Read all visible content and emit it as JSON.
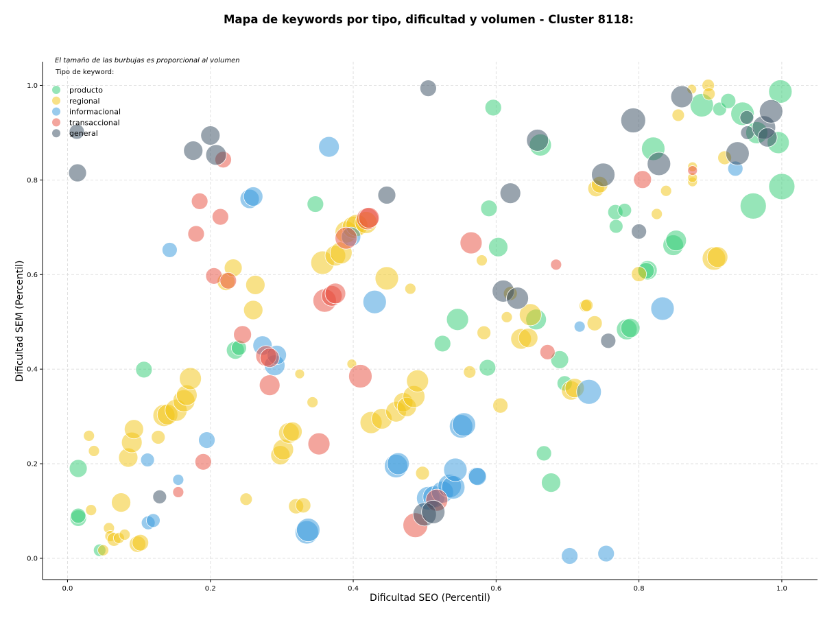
{
  "colors": {
    "producto": "#2ecc71",
    "regional": "#f1c40f",
    "informacional": "#3498db",
    "transaccional": "#e74c3c",
    "general": "#34495e",
    "grid": "#d9d9d9",
    "axis": "#000000"
  },
  "chart_data": {
    "type": "scatter",
    "title": "Mapa de keywords por tipo, dificultad y volumen - Cluster 8118:",
    "xlabel": "Dificultad SEO (Percentil)",
    "ylabel": "Dificultad SEM (Percentil)",
    "xlim": [
      -0.035,
      1.05
    ],
    "ylim": [
      -0.045,
      1.05
    ],
    "xticks": [
      "0.0",
      "0.2",
      "0.4",
      "0.6",
      "0.8",
      "1.0"
    ],
    "yticks": [
      "0.0",
      "0.2",
      "0.4",
      "0.6",
      "0.8",
      "1.0"
    ],
    "grid": true,
    "legend_note": "El tamaño de las burbujas es proporcional al volumen",
    "legend_title": "Tipo de keyword:",
    "legend_position": "top-left",
    "bubble_size": "volumen",
    "series": [
      {
        "name": "producto",
        "points": [
          [
            0.015,
            0.19,
            13
          ],
          [
            0.015,
            0.085,
            12
          ],
          [
            0.015,
            0.09,
            11
          ],
          [
            0.045,
            0.017,
            9
          ],
          [
            0.107,
            0.399,
            12
          ],
          [
            0.235,
            0.44,
            13
          ],
          [
            0.24,
            0.445,
            11
          ],
          [
            0.347,
            0.749,
            12
          ],
          [
            0.525,
            0.454,
            12
          ],
          [
            0.546,
            0.505,
            16
          ],
          [
            0.588,
            0.403,
            12
          ],
          [
            0.596,
            0.953,
            12
          ],
          [
            0.59,
            0.74,
            12
          ],
          [
            0.603,
            0.658,
            14
          ],
          [
            0.656,
            0.505,
            15
          ],
          [
            0.662,
            0.874,
            16
          ],
          [
            0.667,
            0.222,
            11
          ],
          [
            0.677,
            0.16,
            14
          ],
          [
            0.689,
            0.42,
            13
          ],
          [
            0.696,
            0.37,
            11
          ],
          [
            0.767,
            0.732,
            11
          ],
          [
            0.768,
            0.702,
            10
          ],
          [
            0.78,
            0.736,
            10
          ],
          [
            0.783,
            0.484,
            15
          ],
          [
            0.788,
            0.487,
            14
          ],
          [
            0.812,
            0.609,
            14
          ],
          [
            0.81,
            0.608,
            12
          ],
          [
            0.82,
            0.866,
            17
          ],
          [
            0.848,
            0.662,
            15
          ],
          [
            0.852,
            0.672,
            15
          ],
          [
            0.888,
            0.958,
            17
          ],
          [
            0.913,
            0.95,
            10
          ],
          [
            0.925,
            0.967,
            11
          ],
          [
            0.945,
            0.94,
            17
          ],
          [
            0.96,
            0.745,
            19
          ],
          [
            0.965,
            0.9,
            16
          ],
          [
            0.995,
            0.879,
            16
          ],
          [
            0.998,
            0.987,
            17
          ],
          [
            1.0,
            0.786,
            19
          ]
        ]
      },
      {
        "name": "regional",
        "points": [
          [
            0.03,
            0.259,
            8
          ],
          [
            0.033,
            0.102,
            8
          ],
          [
            0.037,
            0.227,
            8
          ],
          [
            0.05,
            0.017,
            8
          ],
          [
            0.058,
            0.064,
            8
          ],
          [
            0.06,
            0.047,
            8
          ],
          [
            0.065,
            0.04,
            10
          ],
          [
            0.072,
            0.043,
            8
          ],
          [
            0.075,
            0.118,
            14
          ],
          [
            0.08,
            0.05,
            8
          ],
          [
            0.085,
            0.213,
            14
          ],
          [
            0.09,
            0.245,
            15
          ],
          [
            0.093,
            0.273,
            14
          ],
          [
            0.098,
            0.03,
            12
          ],
          [
            0.102,
            0.033,
            12
          ],
          [
            0.127,
            0.256,
            10
          ],
          [
            0.135,
            0.302,
            16
          ],
          [
            0.14,
            0.304,
            15
          ],
          [
            0.152,
            0.313,
            16
          ],
          [
            0.163,
            0.333,
            16
          ],
          [
            0.167,
            0.345,
            15
          ],
          [
            0.172,
            0.38,
            16
          ],
          [
            0.222,
            0.585,
            13
          ],
          [
            0.232,
            0.614,
            13
          ],
          [
            0.26,
            0.525,
            14
          ],
          [
            0.263,
            0.578,
            14
          ],
          [
            0.25,
            0.125,
            9
          ],
          [
            0.298,
            0.218,
            14
          ],
          [
            0.302,
            0.23,
            15
          ],
          [
            0.31,
            0.265,
            15
          ],
          [
            0.315,
            0.268,
            14
          ],
          [
            0.32,
            0.11,
            11
          ],
          [
            0.33,
            0.112,
            11
          ],
          [
            0.325,
            0.39,
            7
          ],
          [
            0.343,
            0.33,
            8
          ],
          [
            0.357,
            0.625,
            17
          ],
          [
            0.375,
            0.64,
            15
          ],
          [
            0.383,
            0.646,
            16
          ],
          [
            0.39,
            0.69,
            16
          ],
          [
            0.4,
            0.7,
            16
          ],
          [
            0.398,
            0.411,
            7
          ],
          [
            0.405,
            0.704,
            16
          ],
          [
            0.418,
            0.71,
            16
          ],
          [
            0.425,
            0.287,
            16
          ],
          [
            0.44,
            0.295,
            15
          ],
          [
            0.447,
            0.592,
            17
          ],
          [
            0.46,
            0.31,
            15
          ],
          [
            0.47,
            0.33,
            14
          ],
          [
            0.475,
            0.32,
            14
          ],
          [
            0.48,
            0.57,
            8
          ],
          [
            0.485,
            0.342,
            16
          ],
          [
            0.49,
            0.375,
            16
          ],
          [
            0.497,
            0.18,
            10
          ],
          [
            0.563,
            0.394,
            9
          ],
          [
            0.58,
            0.63,
            8
          ],
          [
            0.583,
            0.477,
            10
          ],
          [
            0.606,
            0.323,
            11
          ],
          [
            0.615,
            0.51,
            8
          ],
          [
            0.62,
            0.56,
            10
          ],
          [
            0.635,
            0.464,
            15
          ],
          [
            0.645,
            0.466,
            14
          ],
          [
            0.648,
            0.515,
            16
          ],
          [
            0.705,
            0.355,
            14
          ],
          [
            0.71,
            0.36,
            14
          ],
          [
            0.725,
            0.534,
            9
          ],
          [
            0.727,
            0.535,
            9
          ],
          [
            0.738,
            0.497,
            11
          ],
          [
            0.74,
            0.782,
            12
          ],
          [
            0.745,
            0.79,
            12
          ],
          [
            0.8,
            0.601,
            11
          ],
          [
            0.825,
            0.728,
            8
          ],
          [
            0.838,
            0.777,
            8
          ],
          [
            0.855,
            0.937,
            9
          ],
          [
            0.874,
            0.992,
            7
          ],
          [
            0.875,
            0.828,
            7
          ],
          [
            0.875,
            0.796,
            7
          ],
          [
            0.875,
            0.805,
            7
          ],
          [
            0.897,
            1.0,
            9
          ],
          [
            0.898,
            0.982,
            9
          ],
          [
            0.905,
            0.634,
            17
          ],
          [
            0.91,
            0.637,
            15
          ],
          [
            0.92,
            0.847,
            10
          ]
        ]
      },
      {
        "name": "informacional",
        "points": [
          [
            0.112,
            0.208,
            10
          ],
          [
            0.113,
            0.075,
            10
          ],
          [
            0.12,
            0.08,
            10
          ],
          [
            0.143,
            0.652,
            11
          ],
          [
            0.155,
            0.166,
            8
          ],
          [
            0.195,
            0.25,
            12
          ],
          [
            0.255,
            0.76,
            14
          ],
          [
            0.26,
            0.765,
            14
          ],
          [
            0.273,
            0.45,
            14
          ],
          [
            0.29,
            0.408,
            15
          ],
          [
            0.293,
            0.43,
            14
          ],
          [
            0.335,
            0.055,
            17
          ],
          [
            0.337,
            0.06,
            17
          ],
          [
            0.366,
            0.87,
            15
          ],
          [
            0.397,
            0.68,
            14
          ],
          [
            0.43,
            0.542,
            17
          ],
          [
            0.46,
            0.195,
            17
          ],
          [
            0.463,
            0.2,
            16
          ],
          [
            0.505,
            0.127,
            17
          ],
          [
            0.513,
            0.13,
            16
          ],
          [
            0.525,
            0.14,
            16
          ],
          [
            0.535,
            0.153,
            17
          ],
          [
            0.54,
            0.15,
            17
          ],
          [
            0.543,
            0.187,
            17
          ],
          [
            0.551,
            0.279,
            17
          ],
          [
            0.555,
            0.283,
            17
          ],
          [
            0.573,
            0.174,
            13
          ],
          [
            0.574,
            0.173,
            13
          ],
          [
            0.703,
            0.005,
            12
          ],
          [
            0.717,
            0.49,
            8
          ],
          [
            0.73,
            0.352,
            18
          ],
          [
            0.754,
            0.01,
            12
          ],
          [
            0.833,
            0.528,
            17
          ],
          [
            0.935,
            0.824,
            11
          ]
        ]
      },
      {
        "name": "transaccional",
        "points": [
          [
            0.155,
            0.14,
            8
          ],
          [
            0.18,
            0.686,
            12
          ],
          [
            0.185,
            0.755,
            12
          ],
          [
            0.19,
            0.204,
            12
          ],
          [
            0.205,
            0.597,
            12
          ],
          [
            0.214,
            0.722,
            12
          ],
          [
            0.218,
            0.843,
            12
          ],
          [
            0.225,
            0.587,
            12
          ],
          [
            0.245,
            0.473,
            13
          ],
          [
            0.278,
            0.428,
            15
          ],
          [
            0.283,
            0.424,
            14
          ],
          [
            0.283,
            0.366,
            15
          ],
          [
            0.352,
            0.242,
            16
          ],
          [
            0.36,
            0.545,
            17
          ],
          [
            0.37,
            0.555,
            15
          ],
          [
            0.375,
            0.56,
            15
          ],
          [
            0.39,
            0.677,
            16
          ],
          [
            0.41,
            0.385,
            17
          ],
          [
            0.42,
            0.718,
            16
          ],
          [
            0.422,
            0.72,
            15
          ],
          [
            0.487,
            0.07,
            18
          ],
          [
            0.517,
            0.123,
            16
          ],
          [
            0.565,
            0.667,
            16
          ],
          [
            0.672,
            0.436,
            11
          ],
          [
            0.684,
            0.621,
            8
          ],
          [
            0.805,
            0.801,
            13
          ],
          [
            0.875,
            0.82,
            7
          ]
        ]
      },
      {
        "name": "general",
        "points": [
          [
            0.013,
            0.902,
            11
          ],
          [
            0.014,
            0.815,
            13
          ],
          [
            0.129,
            0.13,
            10
          ],
          [
            0.176,
            0.862,
            14
          ],
          [
            0.2,
            0.894,
            14
          ],
          [
            0.208,
            0.853,
            15
          ],
          [
            0.447,
            0.768,
            13
          ],
          [
            0.505,
            0.994,
            12
          ],
          [
            0.5,
            0.093,
            17
          ],
          [
            0.512,
            0.098,
            17
          ],
          [
            0.61,
            0.565,
            16
          ],
          [
            0.62,
            0.772,
            15
          ],
          [
            0.63,
            0.55,
            16
          ],
          [
            0.658,
            0.884,
            16
          ],
          [
            0.75,
            0.811,
            17
          ],
          [
            0.757,
            0.46,
            11
          ],
          [
            0.792,
            0.926,
            18
          ],
          [
            0.8,
            0.691,
            11
          ],
          [
            0.828,
            0.834,
            17
          ],
          [
            0.86,
            0.976,
            16
          ],
          [
            0.938,
            0.856,
            17
          ],
          [
            0.951,
            0.932,
            10
          ],
          [
            0.952,
            0.9,
            10
          ],
          [
            0.975,
            0.911,
            17
          ],
          [
            0.98,
            0.89,
            14
          ],
          [
            0.985,
            0.945,
            17
          ]
        ]
      }
    ]
  }
}
